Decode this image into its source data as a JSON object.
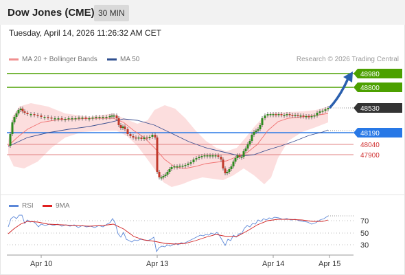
{
  "header": {
    "title": "Dow Jones (CME)",
    "timeframe": "30 MIN"
  },
  "datetime": "Tuesday, April 14, 2026 11:26:32 AM CET",
  "legend": {
    "ma20": "MA 20 + Bollinger Bands",
    "ma50": "MA 50",
    "credit": "Research © 2026 Trading Central"
  },
  "price_labels": [
    {
      "text": "48980",
      "kind": "target",
      "color": "#4ca000"
    },
    {
      "text": "48800",
      "kind": "target",
      "color": "#4ca000"
    },
    {
      "text": "48530",
      "kind": "last",
      "color": "#333333"
    },
    {
      "text": "48190",
      "kind": "pivot",
      "color": "#2878e6"
    },
    {
      "text": "48040",
      "kind": "support",
      "color": "#d03030"
    },
    {
      "text": "47900",
      "kind": "support",
      "color": "#d03030"
    }
  ],
  "rsi": {
    "legend_rsi": "RSI",
    "legend_ma": "9MA",
    "levels": [
      "70",
      "50",
      "30"
    ]
  },
  "x_axis": {
    "labels": [
      "Apr 10",
      "Apr 13",
      "Apr 14",
      "Apr 15"
    ]
  },
  "colors": {
    "target": "#4ca000",
    "pivot": "#2878e6",
    "support": "#d03030",
    "bull_candle": "#2e8b1f",
    "bear_candle": "#c0392b",
    "bollinger": "#fbd6d6",
    "ma50": "#5b6ea8",
    "rsi_line": "#5b87d8",
    "rsi_ma": "#d02020"
  }
}
